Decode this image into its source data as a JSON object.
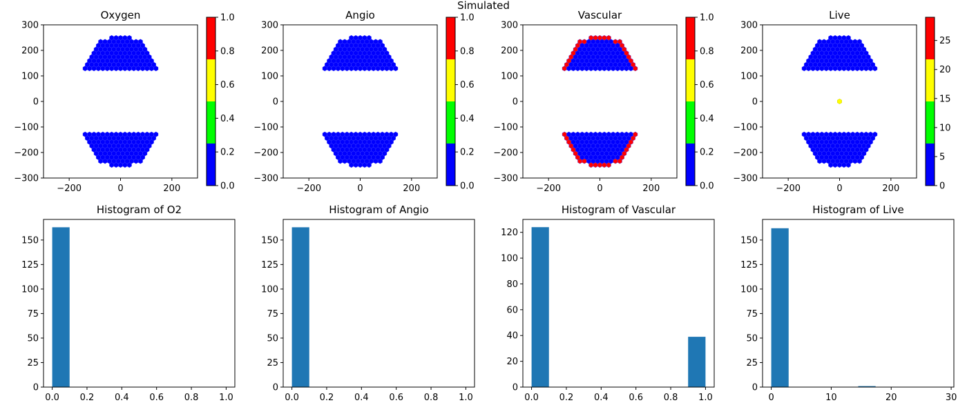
{
  "suptitle": "Simulated",
  "colors": {
    "blue": "#0000ff",
    "green": "#00ff00",
    "yellow": "#ffff00",
    "red": "#ff0000",
    "bar": "#1f77b4"
  },
  "chart_data": [
    {
      "type": "heatmap",
      "title": "Oxygen",
      "xlim": [
        -300,
        300
      ],
      "ylim": [
        -300,
        300
      ],
      "xticks": [
        "−200",
        "0",
        "200"
      ],
      "yticks": [
        "−300",
        "−200",
        "−100",
        "0",
        "100",
        "200",
        "300"
      ],
      "colorbar": {
        "range": [
          0,
          1
        ],
        "ticks": [
          "0.0",
          "0.2",
          "0.4",
          "0.6",
          "0.8",
          "1.0"
        ],
        "colors": [
          "blue",
          "green",
          "yellow",
          "red"
        ]
      },
      "cells": "all blue (value 0)"
    },
    {
      "type": "heatmap",
      "title": "Angio",
      "xlim": [
        -300,
        300
      ],
      "ylim": [
        -300,
        300
      ],
      "xticks": [
        "−200",
        "0",
        "200"
      ],
      "yticks": [
        "−300",
        "−200",
        "−100",
        "0",
        "100",
        "200",
        "300"
      ],
      "colorbar": {
        "range": [
          0,
          1
        ],
        "ticks": [
          "0.0",
          "0.2",
          "0.4",
          "0.6",
          "0.8",
          "1.0"
        ],
        "colors": [
          "blue",
          "green",
          "yellow",
          "red"
        ]
      },
      "cells": "all blue (value 0)"
    },
    {
      "type": "heatmap",
      "title": "Vascular",
      "xlim": [
        -300,
        300
      ],
      "ylim": [
        -300,
        300
      ],
      "xticks": [
        "−200",
        "0",
        "200"
      ],
      "yticks": [
        "−300",
        "−200",
        "−100",
        "0",
        "100",
        "200",
        "300"
      ],
      "colorbar": {
        "range": [
          0,
          1
        ],
        "ticks": [
          "0.0",
          "0.2",
          "0.4",
          "0.6",
          "0.8",
          "1.0"
        ],
        "colors": [
          "blue",
          "green",
          "yellow",
          "red"
        ]
      },
      "cells": "outer ring red (value 1), interior blue (value 0)"
    },
    {
      "type": "heatmap",
      "title": "Live",
      "xlim": [
        -300,
        300
      ],
      "ylim": [
        -300,
        300
      ],
      "xticks": [
        "−200",
        "0",
        "200"
      ],
      "yticks": [
        "−300",
        "−200",
        "−100",
        "0",
        "100",
        "200",
        "300"
      ],
      "colorbar": {
        "range": [
          0,
          29
        ],
        "ticks": [
          "0",
          "5",
          "10",
          "15",
          "20",
          "25"
        ],
        "colors": [
          "blue",
          "green",
          "yellow",
          "red"
        ]
      },
      "cells": "all blue except one yellow cell near (0, 0)"
    },
    {
      "type": "bar",
      "title": "Histogram of O2",
      "xlim": [
        -0.05,
        1.05
      ],
      "ylim": [
        0,
        171
      ],
      "xticks": [
        0,
        0.2,
        0.4,
        0.6,
        0.8,
        1
      ],
      "yticks": [
        0,
        25,
        50,
        75,
        100,
        125,
        150
      ],
      "bins": [
        {
          "x0": 0,
          "x1": 0.1,
          "count": 163
        }
      ]
    },
    {
      "type": "bar",
      "title": "Histogram of Angio",
      "xlim": [
        -0.05,
        1.05
      ],
      "ylim": [
        0,
        171
      ],
      "xticks": [
        0,
        0.2,
        0.4,
        0.6,
        0.8,
        1
      ],
      "yticks": [
        0,
        25,
        50,
        75,
        100,
        125,
        150
      ],
      "bins": [
        {
          "x0": 0,
          "x1": 0.1,
          "count": 163
        }
      ]
    },
    {
      "type": "bar",
      "title": "Histogram of Vascular",
      "xlim": [
        -0.05,
        1.05
      ],
      "ylim": [
        0,
        130
      ],
      "xticks": [
        0,
        0.2,
        0.4,
        0.6,
        0.8,
        1
      ],
      "yticks": [
        0,
        20,
        40,
        60,
        80,
        100,
        120
      ],
      "bins": [
        {
          "x0": 0,
          "x1": 0.1,
          "count": 124
        },
        {
          "x0": 0.9,
          "x1": 1,
          "count": 39
        }
      ]
    },
    {
      "type": "bar",
      "title": "Histogram of Live",
      "xlim": [
        -1.45,
        30.45
      ],
      "ylim": [
        0,
        171
      ],
      "xticks": [
        0,
        10,
        20,
        30
      ],
      "yticks": [
        0,
        25,
        50,
        75,
        100,
        125,
        150
      ],
      "bins": [
        {
          "x0": 0,
          "x1": 2.9,
          "count": 162
        },
        {
          "x0": 14.5,
          "x1": 17.4,
          "count": 1
        }
      ]
    }
  ]
}
